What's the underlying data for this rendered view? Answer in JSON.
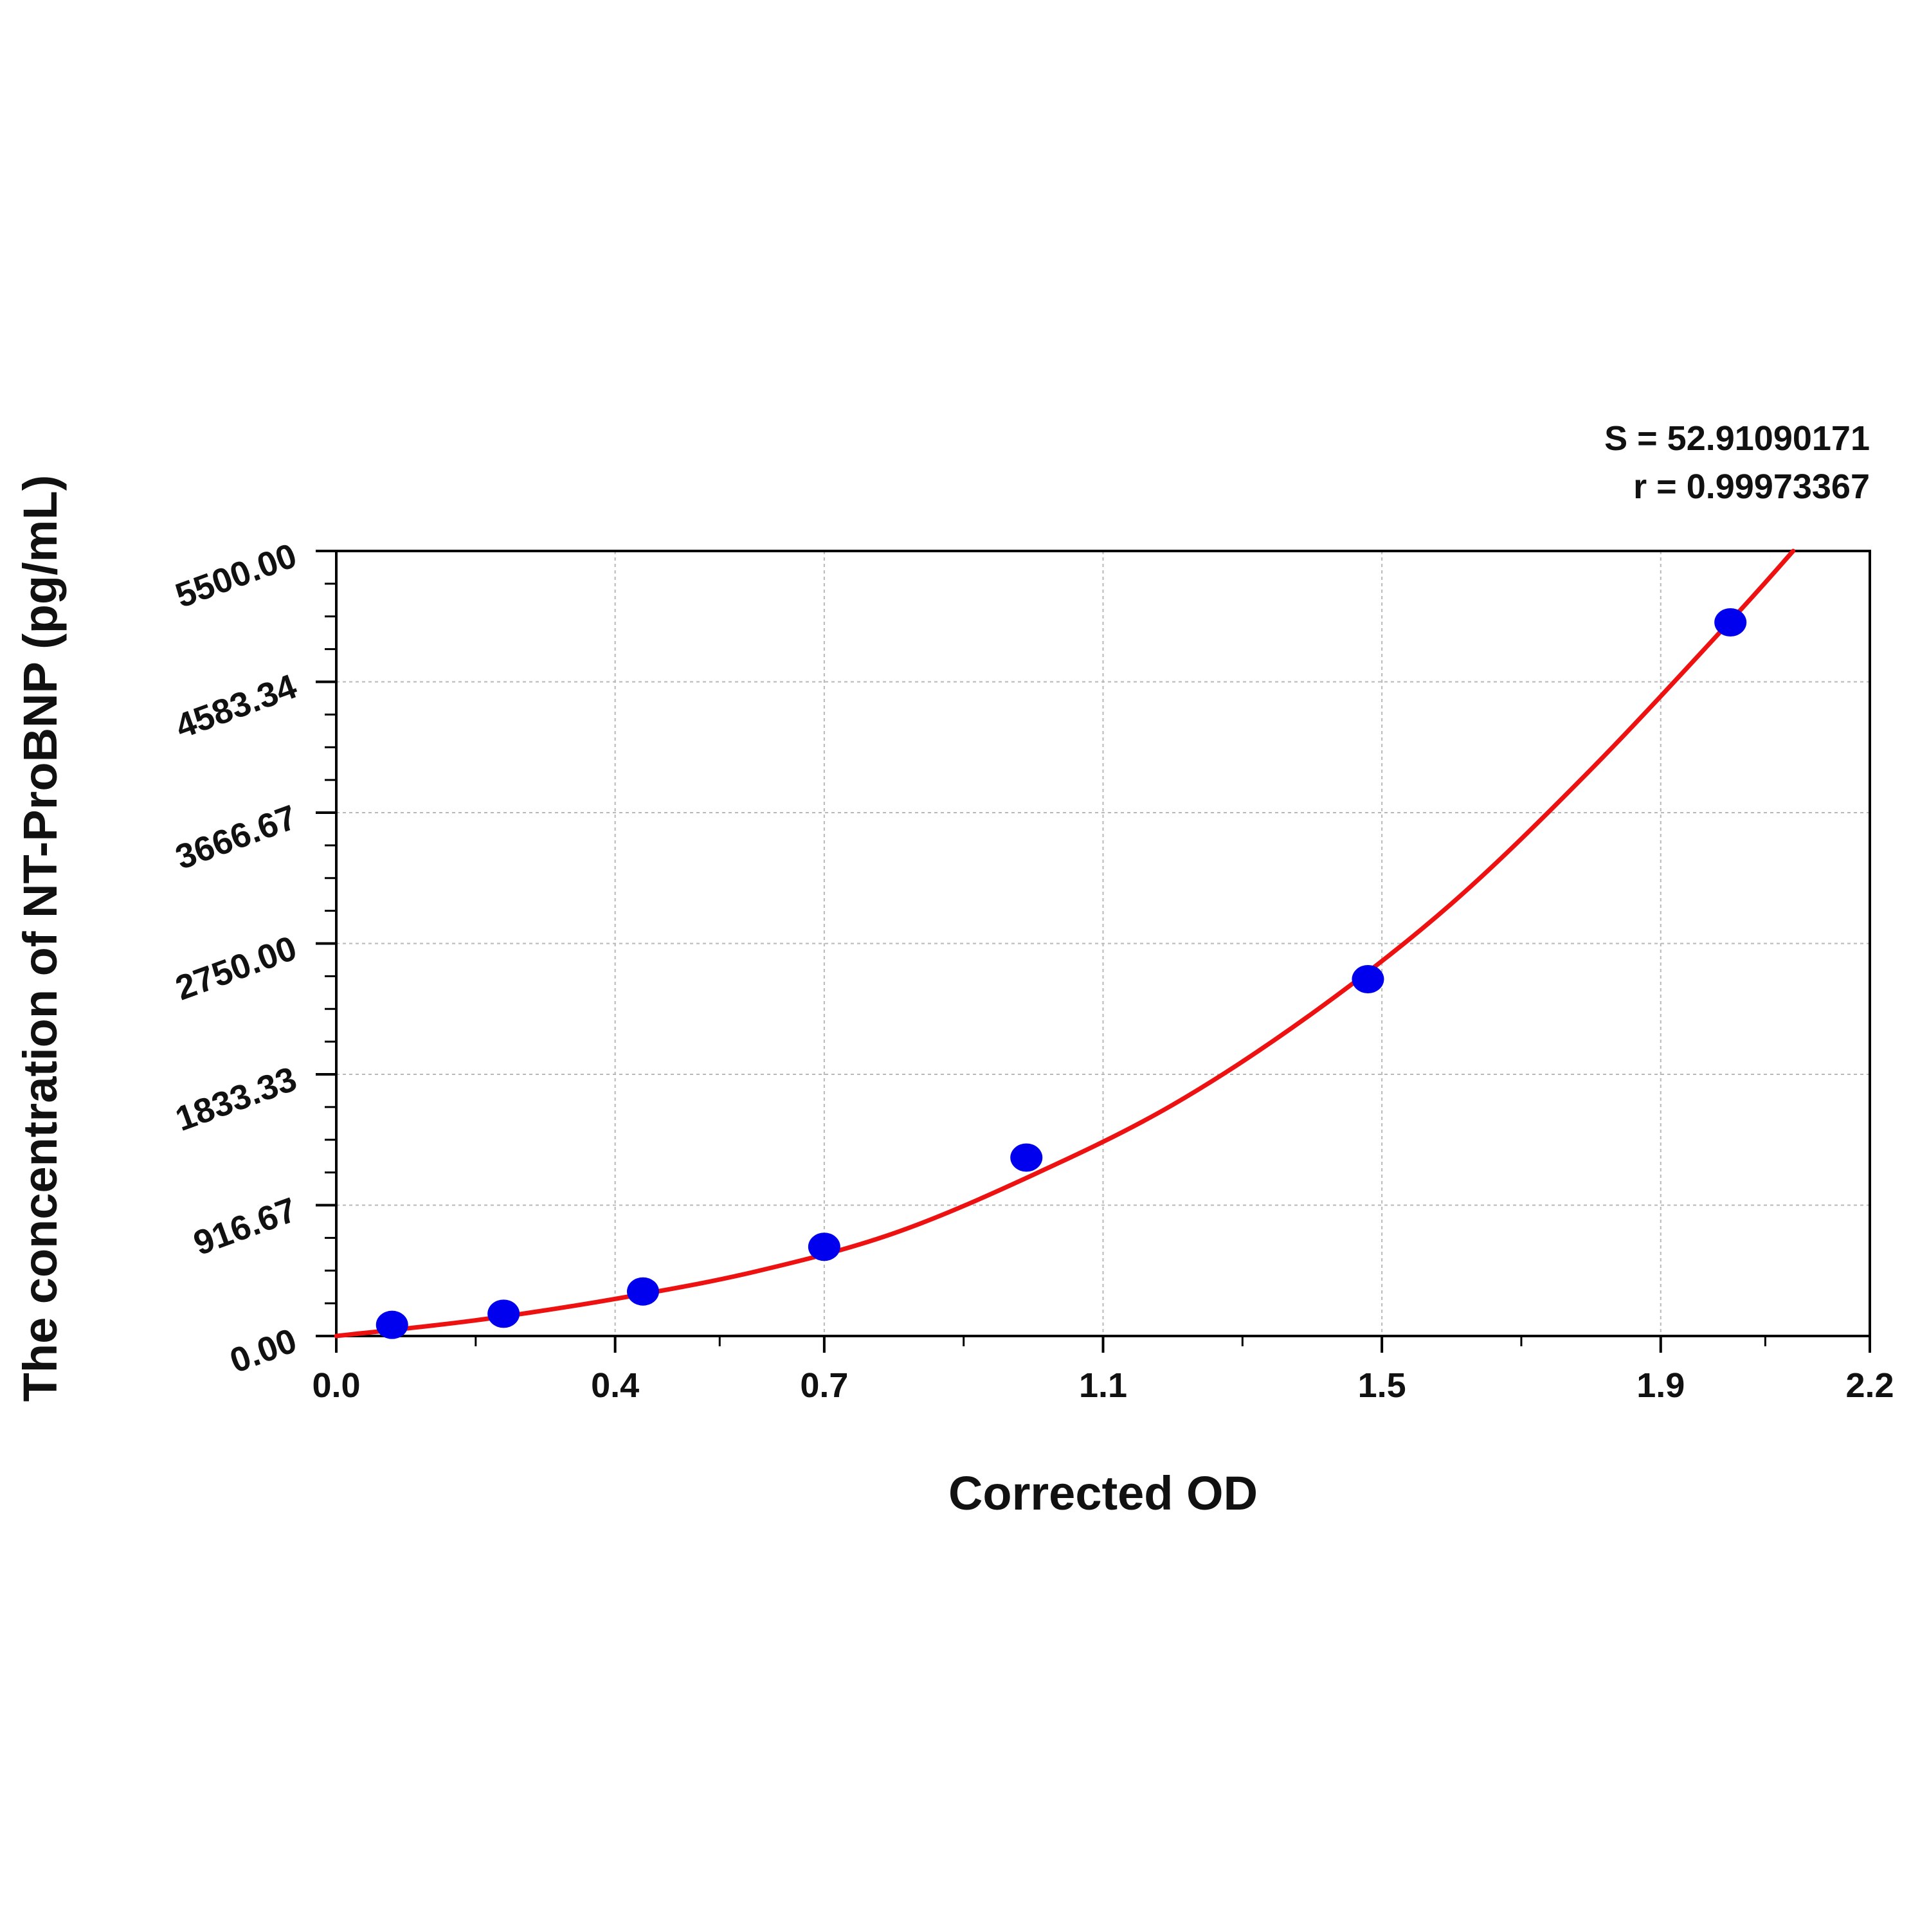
{
  "chart_data": {
    "type": "scatter",
    "title": "",
    "xlabel": "Corrected OD",
    "ylabel": "The concentration of NT-ProBNP (pg/mL)",
    "xlim": [
      0.0,
      2.2
    ],
    "ylim": [
      0.0,
      5500.0
    ],
    "x_ticks": [
      0.0,
      0.4,
      0.7,
      1.1,
      1.5,
      1.9,
      2.2
    ],
    "x_tick_labels": [
      "0.0",
      "0.4",
      "0.7",
      "1.1",
      "1.5",
      "1.9",
      "2.2"
    ],
    "y_ticks": [
      0.0,
      916.67,
      1833.33,
      2750.0,
      3666.67,
      4583.34,
      5500.0
    ],
    "y_tick_labels": [
      "0.00",
      "916.67",
      "1833.33",
      "2750.00",
      "3666.67",
      "4583.34",
      "5500.00"
    ],
    "grid": true,
    "legend": "none",
    "stats": {
      "s_text": "S = 52.91090171",
      "r_text": "r = 0.99973367"
    },
    "series": [
      {
        "kind": "points",
        "color": "#0000ee",
        "x": [
          0.08,
          0.24,
          0.44,
          0.7,
          0.99,
          1.48,
          2.0
        ],
        "y": [
          78,
          156,
          312,
          625,
          1250,
          2500,
          5000
        ]
      },
      {
        "kind": "fit-curve",
        "color": "#ee1111",
        "x": [
          0.0,
          0.2,
          0.4,
          0.6,
          0.8,
          1.0,
          1.2,
          1.4,
          1.6,
          1.8,
          2.0,
          2.09
        ],
        "y": [
          0,
          110,
          260,
          450,
          720,
          1130,
          1620,
          2260,
          3030,
          3970,
          5010,
          5500
        ]
      }
    ]
  }
}
